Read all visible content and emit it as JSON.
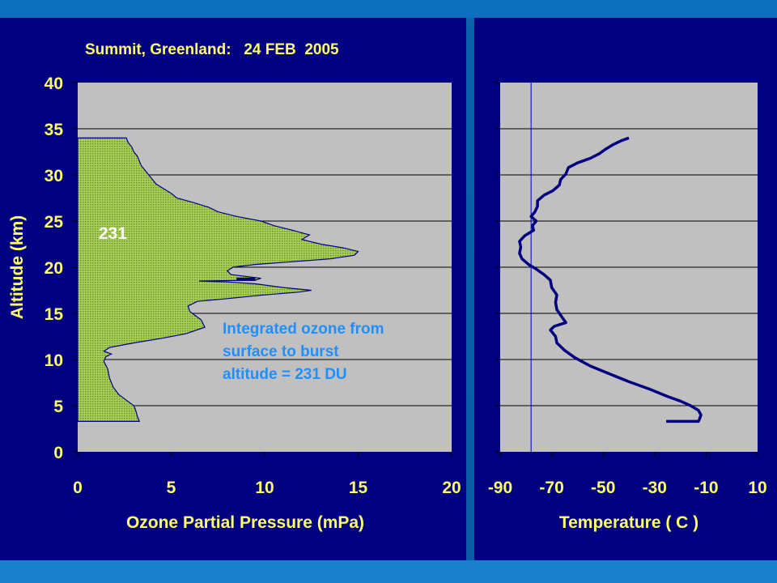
{
  "colors": {
    "background": "#000080",
    "plot_area": "#c0c0c0",
    "axis_text": "#ffff66",
    "ozone_fill": "#9acd32",
    "ozone_line": "#000080",
    "temperature_line": "#000080",
    "annotation": "#1e90ff",
    "label_231": "#ffffff"
  },
  "chart_data": [
    {
      "type": "area",
      "title": "Summit, Greenland:   24 FEB  2005",
      "xlabel": "Ozone Partial Pressure (mPa)",
      "ylabel": "Altitude (km)",
      "xlim": [
        0,
        20
      ],
      "ylim": [
        0,
        40
      ],
      "x_ticks": [
        "0",
        "5",
        "10",
        "15",
        "20"
      ],
      "y_ticks": [
        "0",
        "5",
        "10",
        "15",
        "20",
        "25",
        "30",
        "35",
        "40"
      ],
      "grid": "horizontal",
      "label_in_plot": "231",
      "annotation": {
        "lines": [
          "Integrated ozone from",
          "surface to burst",
          "altitude = 231 DU"
        ]
      },
      "series": [
        {
          "points": [
            [
              3.3,
              3.3
            ],
            [
              3.2,
              3.8
            ],
            [
              3.1,
              4.5
            ],
            [
              3.0,
              5.0
            ],
            [
              2.6,
              5.6
            ],
            [
              2.2,
              6.2
            ],
            [
              1.9,
              7.0
            ],
            [
              1.7,
              8.0
            ],
            [
              1.6,
              9.0
            ],
            [
              1.4,
              9.8
            ],
            [
              1.5,
              10.3
            ],
            [
              1.8,
              10.6
            ],
            [
              1.4,
              10.9
            ],
            [
              1.7,
              11.3
            ],
            [
              3.0,
              11.8
            ],
            [
              4.5,
              12.3
            ],
            [
              5.8,
              12.8
            ],
            [
              6.8,
              13.5
            ],
            [
              6.6,
              14.3
            ],
            [
              6.0,
              15.2
            ],
            [
              5.9,
              15.8
            ],
            [
              6.4,
              16.3
            ],
            [
              8.0,
              16.6
            ],
            [
              10.0,
              17.0
            ],
            [
              11.8,
              17.3
            ],
            [
              12.5,
              17.5
            ],
            [
              11.0,
              17.8
            ],
            [
              9.5,
              18.2
            ],
            [
              8.0,
              18.4
            ],
            [
              6.5,
              18.5
            ],
            [
              9.5,
              18.6
            ],
            [
              9.8,
              18.8
            ],
            [
              8.2,
              19.2
            ],
            [
              8.0,
              19.6
            ],
            [
              8.3,
              20.0
            ],
            [
              9.5,
              20.3
            ],
            [
              11.5,
              20.6
            ],
            [
              13.5,
              20.9
            ],
            [
              14.8,
              21.3
            ],
            [
              15.0,
              21.7
            ],
            [
              14.2,
              22.1
            ],
            [
              13.0,
              22.5
            ],
            [
              12.0,
              23.0
            ],
            [
              12.4,
              23.5
            ],
            [
              11.5,
              24.0
            ],
            [
              10.5,
              24.5
            ],
            [
              9.8,
              25.0
            ],
            [
              8.5,
              25.5
            ],
            [
              7.5,
              26.0
            ],
            [
              7.0,
              26.5
            ],
            [
              6.2,
              27.0
            ],
            [
              5.3,
              27.5
            ],
            [
              5.0,
              28.0
            ],
            [
              4.6,
              28.5
            ],
            [
              4.2,
              29.0
            ],
            [
              4.0,
              29.5
            ],
            [
              3.8,
              30.0
            ],
            [
              3.6,
              30.5
            ],
            [
              3.4,
              31.0
            ],
            [
              3.3,
              31.5
            ],
            [
              3.2,
              32.0
            ],
            [
              3.0,
              32.5
            ],
            [
              2.9,
              33.0
            ],
            [
              2.7,
              33.5
            ],
            [
              2.6,
              34.0
            ]
          ]
        }
      ]
    },
    {
      "type": "line",
      "xlabel": "Temperature ( C )",
      "xlim": [
        -90,
        10
      ],
      "ylim": [
        0,
        40
      ],
      "x_ticks": [
        "-90",
        "-70",
        "-50",
        "-30",
        "-10",
        "10"
      ],
      "grid": "horizontal",
      "reference_line_x": -78,
      "series": [
        {
          "points": [
            [
              -25.5,
              3.3
            ],
            [
              -13.0,
              3.3
            ],
            [
              -12.5,
              3.6
            ],
            [
              -12.0,
              4.0
            ],
            [
              -13.0,
              4.5
            ],
            [
              -16.0,
              5.0
            ],
            [
              -20.0,
              5.5
            ],
            [
              -25.0,
              6.0
            ],
            [
              -32.0,
              6.8
            ],
            [
              -40.0,
              7.6
            ],
            [
              -48.0,
              8.5
            ],
            [
              -55.0,
              9.3
            ],
            [
              -61.0,
              10.2
            ],
            [
              -65.0,
              11.0
            ],
            [
              -68.0,
              11.8
            ],
            [
              -68.5,
              12.5
            ],
            [
              -70.5,
              13.2
            ],
            [
              -69.0,
              13.6
            ],
            [
              -64.5,
              14.0
            ],
            [
              -66.0,
              14.6
            ],
            [
              -68.0,
              15.4
            ],
            [
              -68.5,
              16.2
            ],
            [
              -68.0,
              17.0
            ],
            [
              -70.0,
              17.8
            ],
            [
              -70.5,
              18.6
            ],
            [
              -73.0,
              19.2
            ],
            [
              -76.0,
              19.8
            ],
            [
              -79.0,
              20.3
            ],
            [
              -81.5,
              20.9
            ],
            [
              -82.5,
              21.5
            ],
            [
              -82.0,
              22.2
            ],
            [
              -82.5,
              22.8
            ],
            [
              -80.5,
              23.4
            ],
            [
              -77.0,
              24.0
            ],
            [
              -77.5,
              24.5
            ],
            [
              -76.0,
              25.0
            ],
            [
              -78.0,
              25.5
            ],
            [
              -76.5,
              26.0
            ],
            [
              -75.5,
              26.6
            ],
            [
              -75.5,
              27.2
            ],
            [
              -73.0,
              27.8
            ],
            [
              -69.5,
              28.3
            ],
            [
              -67.0,
              28.9
            ],
            [
              -66.5,
              29.5
            ],
            [
              -64.5,
              30.1
            ],
            [
              -63.5,
              30.8
            ],
            [
              -60.0,
              31.3
            ],
            [
              -55.0,
              31.8
            ],
            [
              -51.5,
              32.3
            ],
            [
              -49.0,
              32.8
            ],
            [
              -46.0,
              33.3
            ],
            [
              -43.0,
              33.7
            ],
            [
              -40.0,
              34.0
            ]
          ]
        }
      ]
    }
  ]
}
